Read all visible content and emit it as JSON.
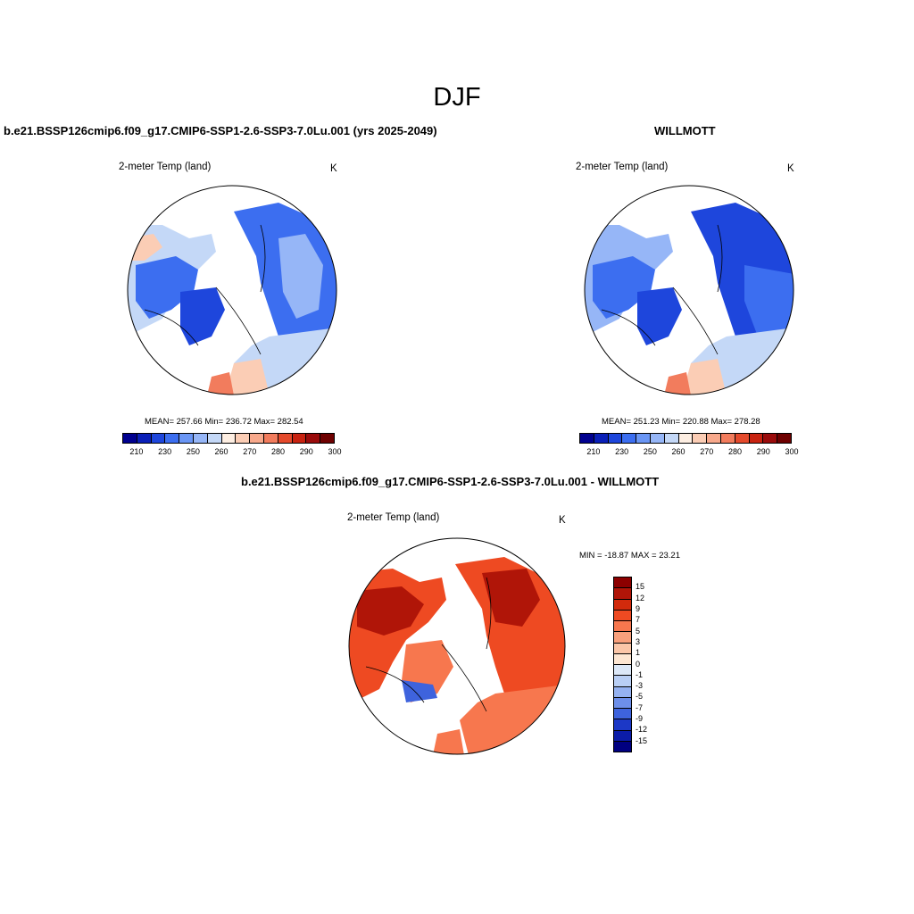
{
  "title": "DJF",
  "panels": [
    {
      "title": "b.e21.BSSP126cmip6.f09_g17.CMIP6-SSP1-2.6-SSP3-7.0Lu.001 (yrs 2025-2049)",
      "variable": "2-meter Temp (land)",
      "units": "K",
      "stats": "MEAN= 257.66  Min= 236.72  Max= 282.54"
    },
    {
      "title": "WILLMOTT",
      "variable": "2-meter Temp (land)",
      "units": "K",
      "stats": "MEAN= 251.23  Min= 220.88  Max= 278.28"
    },
    {
      "title": "b.e21.BSSP126cmip6.f09_g17.CMIP6-SSP1-2.6-SSP3-7.0Lu.001 - WILLMOTT",
      "variable": "2-meter Temp (land)",
      "units": "K",
      "stats": "MIN = -18.87 MAX =  23.21"
    }
  ],
  "abs_colorbar": {
    "colors": [
      "#00008f",
      "#0a1fb8",
      "#1e46dc",
      "#3c6ef0",
      "#6a96f5",
      "#96b6f7",
      "#c4d8f7",
      "#fdeee2",
      "#fbcdb5",
      "#f8a98c",
      "#f27c5d",
      "#e54a2c",
      "#c82210",
      "#9a0b0b",
      "#6e0000"
    ],
    "tick_labels": [
      "210",
      "230",
      "250",
      "260",
      "270",
      "280",
      "290",
      "300"
    ]
  },
  "diff_colorbar": {
    "colors": [
      "#8c0000",
      "#b01508",
      "#d22a0c",
      "#ee4a22",
      "#f7774e",
      "#f9a07c",
      "#fbc6a8",
      "#fde6d2",
      "#dce8f8",
      "#b9cff5",
      "#95b2f1",
      "#6d8fea",
      "#3e63dd",
      "#1c38c6",
      "#0b1ca8",
      "#000080"
    ],
    "tick_labels": [
      "15",
      "12",
      "9",
      "7",
      "5",
      "3",
      "1",
      "0",
      "-1",
      "-3",
      "-5",
      "-7",
      "-9",
      "-12",
      "-15"
    ]
  },
  "map_colors": {
    "deep_blue": "#1e46dc",
    "mid_blue": "#3c6ef0",
    "light_blue": "#96b6f7",
    "pale_blue": "#c4d8f7",
    "pale_orange": "#fbcdb5",
    "orange": "#f27c5d",
    "red": "#e54a2c",
    "dark_red": "#9a0b0b",
    "diff_red": "#ee4a22",
    "diff_dark": "#b01508",
    "diff_orange": "#f7774e",
    "diff_blue": "#3e63dd"
  }
}
